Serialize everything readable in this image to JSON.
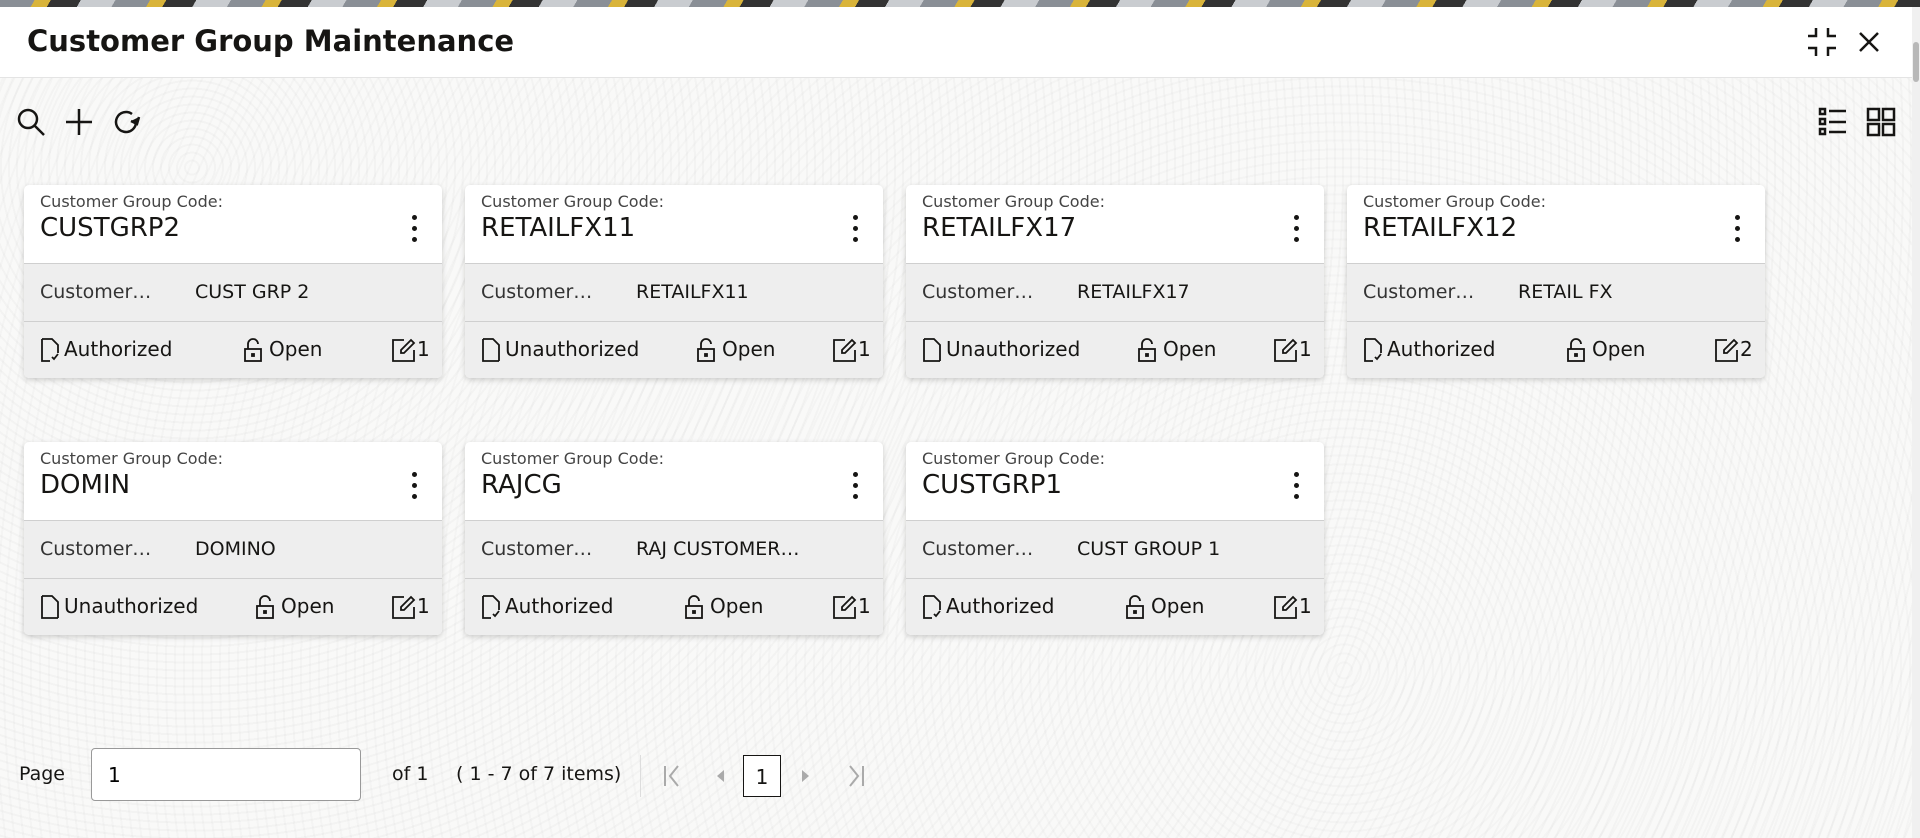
{
  "header": {
    "title": "Customer Group Maintenance",
    "icons": [
      "compress-icon",
      "close-icon"
    ]
  },
  "toolbar": {
    "icons": [
      "search-icon",
      "add-icon",
      "refresh-icon",
      "list-view-icon",
      "grid-view-icon"
    ]
  },
  "cards": [
    {
      "label": "Customer Group Code:",
      "code": "CUSTGRP2",
      "desc_label": "Customer…",
      "desc": "CUST GRP 2",
      "status": "Authorized",
      "state": "Open",
      "mods": "1"
    },
    {
      "label": "Customer Group Code:",
      "code": "RETAILFX11",
      "desc_label": "Customer…",
      "desc": "RETAILFX11",
      "status": "Unauthorized",
      "state": "Open",
      "mods": "1"
    },
    {
      "label": "Customer Group Code:",
      "code": "RETAILFX17",
      "desc_label": "Customer…",
      "desc": "RETAILFX17",
      "status": "Unauthorized",
      "state": "Open",
      "mods": "1"
    },
    {
      "label": "Customer Group Code:",
      "code": "RETAILFX12",
      "desc_label": "Customer…",
      "desc": "RETAIL FX",
      "status": "Authorized",
      "state": "Open",
      "mods": "2"
    },
    {
      "label": "Customer Group Code:",
      "code": "DOMIN",
      "desc_label": "Customer…",
      "desc": "DOMINO",
      "status": "Unauthorized",
      "state": "Open",
      "mods": "1"
    },
    {
      "label": "Customer Group Code:",
      "code": "RAJCG",
      "desc_label": "Customer…",
      "desc": "RAJ CUSTOMER…",
      "status": "Authorized",
      "state": "Open",
      "mods": "1"
    },
    {
      "label": "Customer Group Code:",
      "code": "CUSTGRP1",
      "desc_label": "Customer…",
      "desc": "CUST GROUP 1",
      "status": "Authorized",
      "state": "Open",
      "mods": "1"
    }
  ],
  "pagination": {
    "page_label": "Page",
    "page_value": "1",
    "of_text": "of 1",
    "range_text": "( 1 - 7 of 7 items)",
    "current_page": "1"
  }
}
